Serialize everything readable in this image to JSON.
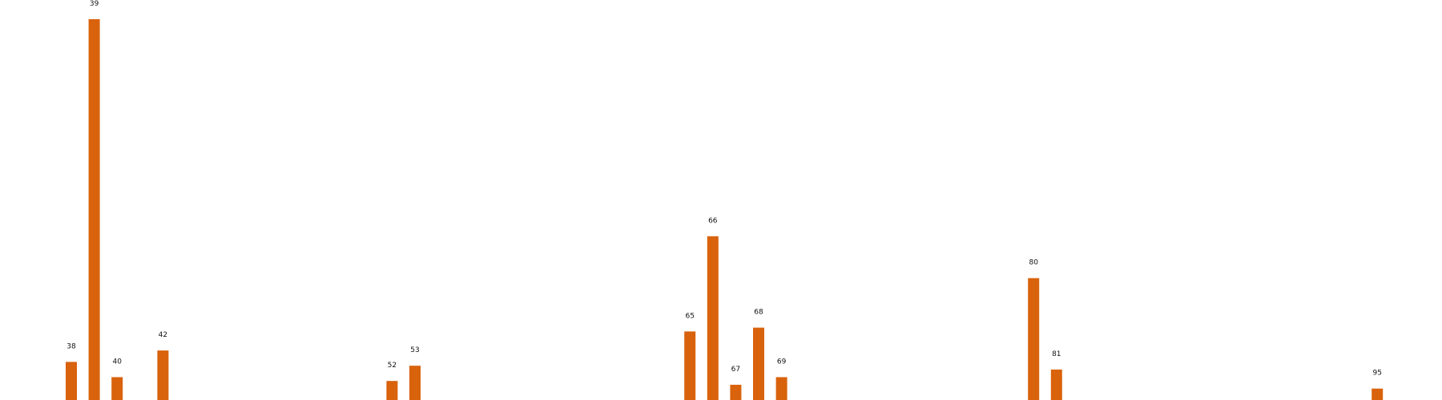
{
  "chart_data": {
    "type": "bar",
    "title": "",
    "xlabel": "",
    "ylabel": "",
    "grid": false,
    "legend": "none",
    "bar_color": "#d9620c",
    "ylim": [
      0,
      100
    ],
    "categories": [
      "38",
      "39",
      "40",
      "42",
      "52",
      "53",
      "65",
      "66",
      "67",
      "68",
      "69",
      "80",
      "81",
      "95"
    ],
    "x": [
      38,
      39,
      40,
      42,
      52,
      53,
      65,
      66,
      67,
      68,
      69,
      80,
      81,
      95
    ],
    "values": [
      10,
      100,
      6,
      13,
      5,
      9,
      18,
      43,
      4,
      19,
      6,
      32,
      8,
      3
    ],
    "labels": [
      "38",
      "39",
      "40",
      "42",
      "52",
      "53",
      "65",
      "66",
      "67",
      "68",
      "69",
      "80",
      "81",
      "95"
    ]
  }
}
